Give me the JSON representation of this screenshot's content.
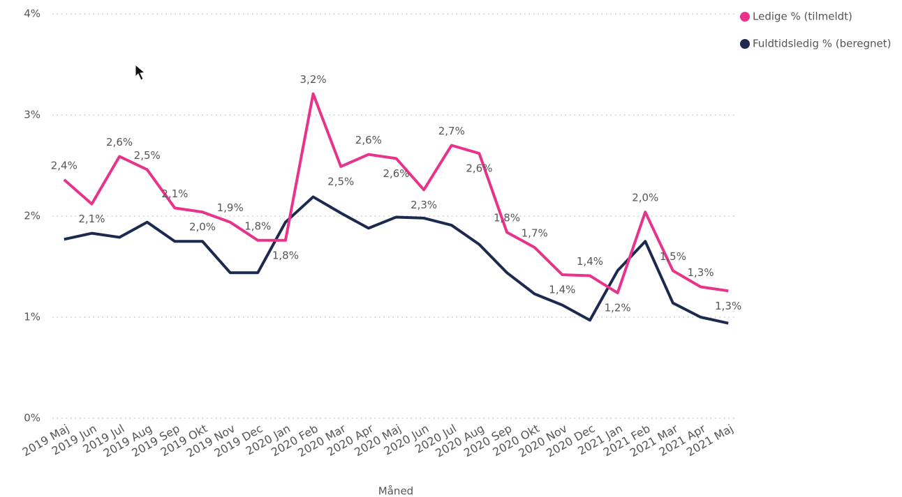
{
  "chart_data": {
    "type": "line",
    "x_label": "Måned",
    "categories": [
      "2019 Maj",
      "2019 Jun",
      "2019 Jul",
      "2019 Aug",
      "2019 Sep",
      "2019 Okt",
      "2019 Nov",
      "2019 Dec",
      "2020 Jan",
      "2020 Feb",
      "2020 Mar",
      "2020 Apr",
      "2020 Maj",
      "2020 Jun",
      "2020 Jul",
      "2020 Aug",
      "2020 Sep",
      "2020 Okt",
      "2020 Nov",
      "2020 Dec",
      "2021 Jan",
      "2021 Feb",
      "2021 Mar",
      "2021 Apr",
      "2021 Maj"
    ],
    "series": [
      {
        "name": "Ledige % (tilmeldt)",
        "color": "#e8338a",
        "values": [
          2.36,
          2.12,
          2.59,
          2.46,
          2.08,
          2.04,
          1.94,
          1.76,
          1.76,
          3.21,
          2.49,
          2.61,
          2.57,
          2.26,
          2.7,
          2.62,
          1.84,
          1.69,
          1.42,
          1.41,
          1.24,
          2.04,
          1.46,
          1.3,
          1.26
        ],
        "value_labels": [
          "2,4%",
          "2,1%",
          "2,6%",
          "2,5%",
          "2,1%",
          "2,0%",
          "1,9%",
          "1,8%",
          "1,8%",
          "3,2%",
          "2,5%",
          "2,6%",
          "2,6%",
          "2,3%",
          "2,7%",
          "2,6%",
          "1,8%",
          "1,7%",
          "1,4%",
          "1,4%",
          "1,2%",
          "2,0%",
          "1,5%",
          "1,3%",
          "1,3%"
        ]
      },
      {
        "name": "Fuldtidsledig % (beregnet)",
        "color": "#1b2a4e",
        "values": [
          1.77,
          1.83,
          1.79,
          1.94,
          1.75,
          1.75,
          1.44,
          1.44,
          1.94,
          2.19,
          2.03,
          1.88,
          1.99,
          1.98,
          1.91,
          1.72,
          1.44,
          1.23,
          1.12,
          0.97,
          1.46,
          1.75,
          1.14,
          1.0,
          0.94
        ]
      }
    ],
    "ylim": [
      0,
      4
    ],
    "yticks": [
      {
        "value": 0,
        "label": "0%"
      },
      {
        "value": 1,
        "label": "1%"
      },
      {
        "value": 2,
        "label": "2%"
      },
      {
        "value": 3,
        "label": "3%"
      },
      {
        "value": 4,
        "label": "4%"
      }
    ],
    "grid": true,
    "legend": "top-right"
  }
}
